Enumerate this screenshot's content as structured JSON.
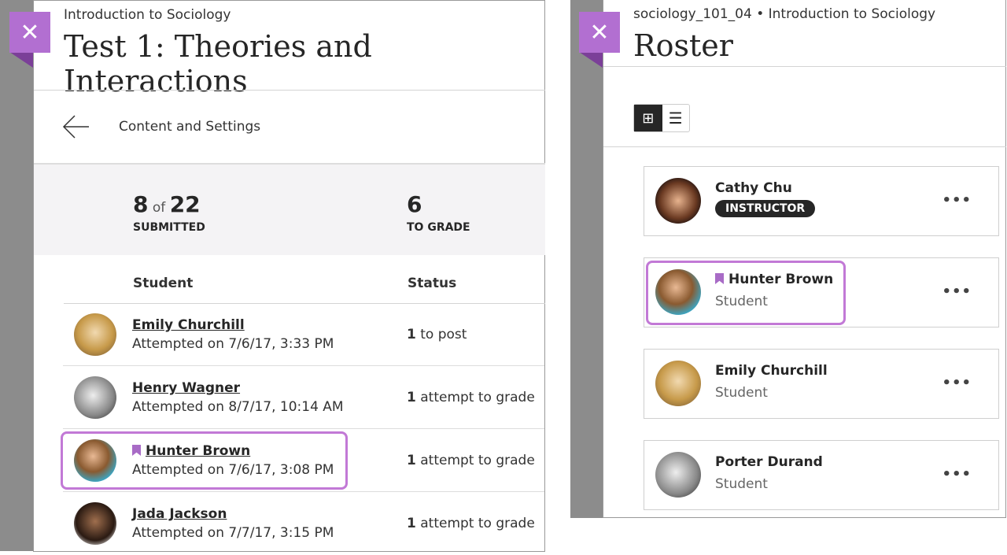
{
  "test_panel": {
    "course": "Introduction to Sociology",
    "title": "Test 1: Theories and Interactions",
    "nav_label": "Content and Settings",
    "submitted": {
      "count": "8",
      "of": "of",
      "total": "22",
      "label": "SUBMITTED"
    },
    "to_grade": {
      "count": "6",
      "label": "TO GRADE"
    },
    "columns": [
      "Student",
      "Status"
    ],
    "rows": [
      {
        "name": "Emily Churchill",
        "attempt": "Attempted on 7/6/17, 3:33 PM",
        "status_num": "1",
        "status_text": "to post"
      },
      {
        "name": "Henry Wagner",
        "attempt": "Attempted on 8/7/17, 10:14 AM",
        "status_num": "1",
        "status_text": "attempt to grade"
      },
      {
        "name": "Hunter Brown",
        "attempt": "Attempted on 7/6/17, 3:08 PM",
        "status_num": "1",
        "status_text": "attempt to grade",
        "bookmarked": true
      },
      {
        "name": "Jada Jackson",
        "attempt": "Attempted on 7/7/17, 3:15 PM",
        "status_num": "1",
        "status_text": "attempt to grade"
      }
    ]
  },
  "roster_panel": {
    "course": "sociology_101_04 • Introduction to Sociology",
    "title": "Roster",
    "view_mode": "grid",
    "members": [
      {
        "name": "Cathy Chu",
        "role": "INSTRUCTOR"
      },
      {
        "name": "Hunter Brown",
        "role": "Student",
        "bookmarked": true
      },
      {
        "name": "Emily Churchill",
        "role": "Student"
      },
      {
        "name": "Porter Durand",
        "role": "Student"
      }
    ]
  },
  "colors": {
    "accent": "#b26fd1",
    "highlight": "#c279d6"
  }
}
